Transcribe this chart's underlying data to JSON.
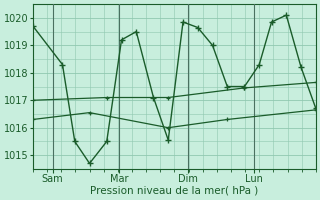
{
  "background_color": "#c8eedd",
  "grid_color": "#90c8b0",
  "line_color": "#1a5c2a",
  "xlabel": "Pression niveau de la mer( hPa )",
  "ylim": [
    1014.5,
    1020.5
  ],
  "yticks": [
    1015,
    1016,
    1017,
    1018,
    1019,
    1020
  ],
  "xtick_labels": [
    "Sam",
    "Mar",
    "Dim",
    "Lun"
  ],
  "vline_color": "#4a7060",
  "series1_x": [
    0,
    12,
    17,
    23,
    30,
    36,
    42,
    49,
    55,
    61,
    67,
    73,
    79,
    86,
    92,
    97,
    103,
    109,
    115
  ],
  "series1_y": [
    1019.7,
    1018.3,
    1015.5,
    1014.7,
    1015.5,
    1019.2,
    1019.5,
    1017.1,
    1015.55,
    1019.85,
    1019.65,
    1019.0,
    1017.5,
    1017.5,
    1018.3,
    1019.85,
    1020.1,
    1018.2,
    1016.7
  ],
  "series2_x": [
    0,
    23,
    55,
    79,
    115
  ],
  "series2_y": [
    1016.3,
    1016.55,
    1016.0,
    1016.3,
    1016.65
  ],
  "series3_x": [
    0,
    30,
    55,
    86,
    115
  ],
  "series3_y": [
    1017.0,
    1017.1,
    1017.1,
    1017.45,
    1017.65
  ],
  "vline_x": [
    8,
    35,
    63,
    90
  ],
  "xtick_x": [
    8,
    35,
    63,
    90
  ],
  "xmax": 115
}
